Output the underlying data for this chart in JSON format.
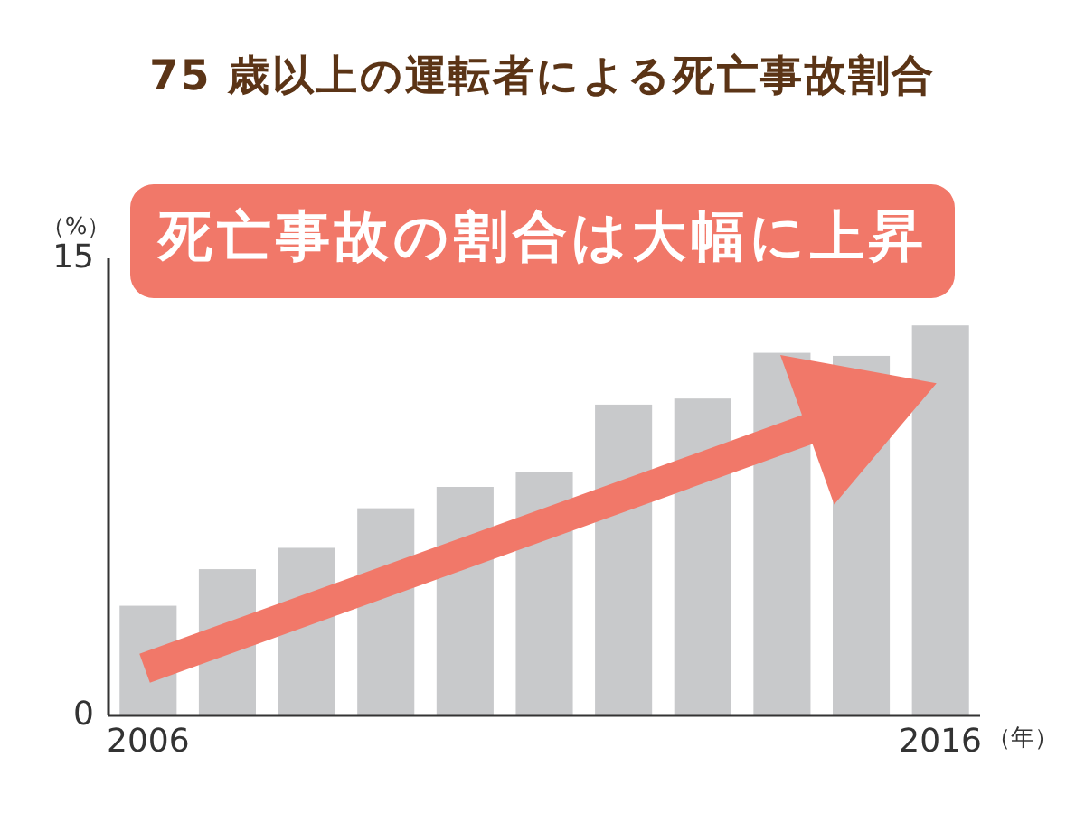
{
  "chart_data": {
    "type": "bar",
    "title": "75 歳以上の運転者による死亡事故割合",
    "annotations": [
      "死亡事故の割合は大幅に上昇"
    ],
    "xlabel": "（年）",
    "ylabel": "（%）",
    "categories": [
      "2006",
      null,
      null,
      null,
      null,
      null,
      null,
      null,
      null,
      null,
      "2016"
    ],
    "values": [
      3.6,
      4.8,
      5.5,
      6.8,
      7.5,
      8.0,
      10.2,
      10.4,
      11.9,
      11.8,
      12.8
    ],
    "color": "#c8c9cb",
    "ylim": [
      0,
      15
    ],
    "yticks": [
      0,
      15
    ]
  }
}
